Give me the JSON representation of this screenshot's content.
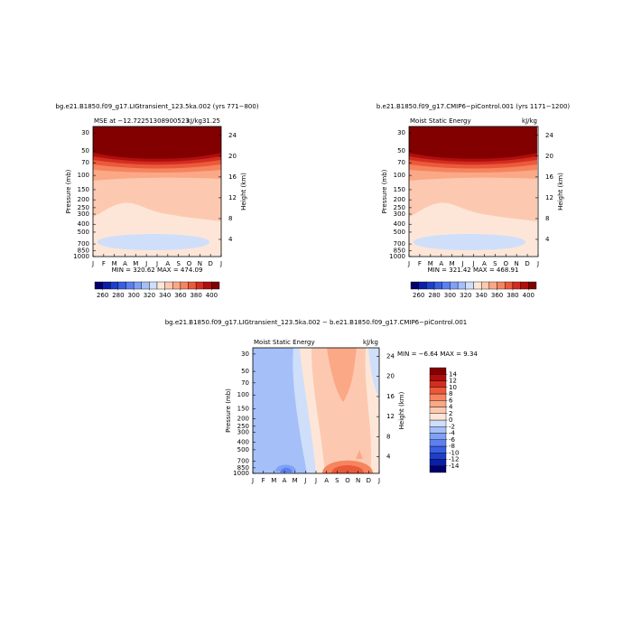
{
  "panels": [
    {
      "title": "bg.e21.B1850.f09_g17.LIGtransient_123.5ka.002 (yrs 771−800)",
      "left_string": "MSE at −12.72251308900523",
      "right_string": "kJ/kg31.25",
      "min_max": "MIN = 320.62 MAX = 474.09"
    },
    {
      "title": "b.e21.B1850.f09_g17.CMIP6−piControl.001 (yrs 1171−1200)",
      "left_string": "Moist Static Energy",
      "right_string": "kJ/kg",
      "min_max": "MIN = 321.42 MAX = 468.91"
    },
    {
      "title": "bg.e21.B1850.f09_g17.LIGtransient_123.5ka.002 − b.e21.B1850.f09_g17.CMIP6−piControl.001",
      "left_string": "Moist Static Energy",
      "right_string": "kJ/kg",
      "min_max": "MIN = −6.64 MAX =   9.34"
    }
  ],
  "axes": {
    "months": [
      "J",
      "F",
      "M",
      "A",
      "M",
      "J",
      "J",
      "A",
      "S",
      "O",
      "N",
      "D",
      "J"
    ],
    "ylabel": "Pressure (mb)",
    "y2label": "Height (km)",
    "log_y": true,
    "ylim": [
      1000,
      25
    ],
    "yticks": [
      30,
      50,
      70,
      100,
      150,
      200,
      250,
      300,
      400,
      500,
      700,
      850,
      1000
    ],
    "y2lim": [
      0.7,
      25.7
    ],
    "y2ticks": [
      4,
      8,
      12,
      16,
      20,
      24
    ]
  },
  "colors": [
    "#03006d",
    "#0a1fa5",
    "#1e3fc8",
    "#3a5fe0",
    "#5c80f0",
    "#7fa0f5",
    "#a5bff8",
    "#cfdffa",
    "#fde6d8",
    "#fcc9b0",
    "#fba887",
    "#f6845f",
    "#ea5a3a",
    "#d42d20",
    "#b00e0e",
    "#820000"
  ],
  "colorbar_full": {
    "lim": [
      250,
      410
    ],
    "ticks": [
      260,
      280,
      300,
      320,
      340,
      360,
      380,
      400
    ]
  },
  "colorbar_diff": {
    "lim": [
      -16,
      16
    ],
    "ticks": [
      14,
      12,
      10,
      8,
      6,
      4,
      2,
      0,
      -2,
      -4,
      -6,
      -8,
      -10,
      -12,
      -14
    ]
  }
}
